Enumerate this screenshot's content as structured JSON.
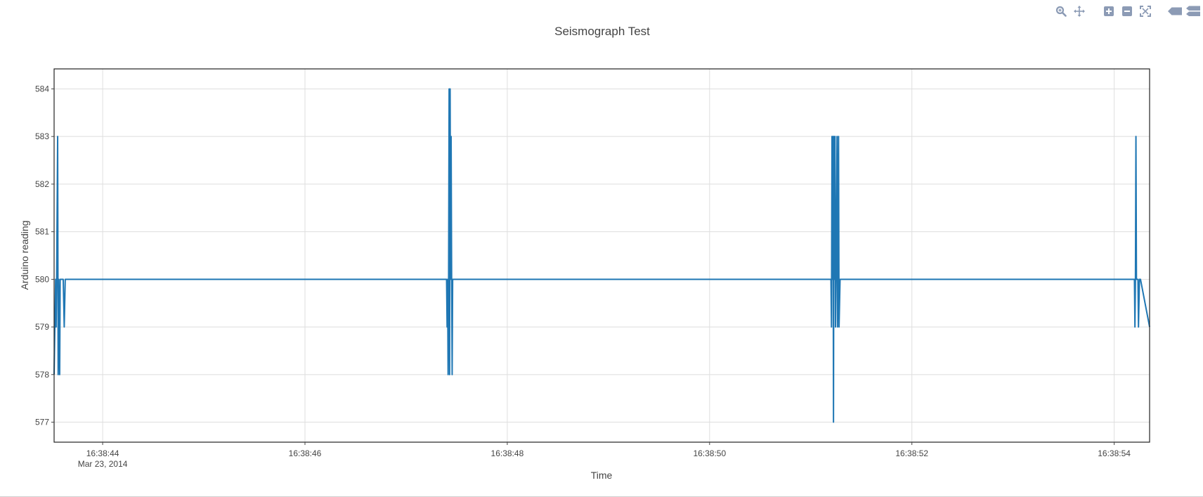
{
  "toolbar": {
    "buttons": [
      {
        "name": "zoom",
        "icon": "zoom-icon"
      },
      {
        "name": "pan",
        "icon": "pan-icon"
      },
      {
        "name": "zoom-in",
        "icon": "zoom-in-icon"
      },
      {
        "name": "zoom-out",
        "icon": "zoom-out-icon"
      },
      {
        "name": "autoscale",
        "icon": "autoscale-icon"
      },
      {
        "name": "hover-closest",
        "icon": "hover-closest-icon"
      },
      {
        "name": "hover-compare",
        "icon": "hover-compare-icon"
      }
    ],
    "icon_color": "#8c9bb5"
  },
  "chart_data": {
    "type": "line",
    "title": "Seismograph Test",
    "xlabel": "Time",
    "ylabel": "Arduino reading",
    "x_unit": "seconds past 16:38:00, Mar 23, 2014",
    "xlim": [
      43.52,
      54.35
    ],
    "ylim": [
      576.58,
      584.42
    ],
    "x_ticks": [
      {
        "value": 44,
        "label": "16:38:44",
        "sublabel": "Mar 23, 2014"
      },
      {
        "value": 46,
        "label": "16:38:46",
        "sublabel": ""
      },
      {
        "value": 48,
        "label": "16:38:48",
        "sublabel": ""
      },
      {
        "value": 50,
        "label": "16:38:50",
        "sublabel": ""
      },
      {
        "value": 52,
        "label": "16:38:52",
        "sublabel": ""
      },
      {
        "value": 54,
        "label": "16:38:54",
        "sublabel": ""
      }
    ],
    "y_ticks": [
      577,
      578,
      579,
      580,
      581,
      582,
      583,
      584
    ],
    "grid": true,
    "line_color": "#1f77b4",
    "series": [
      {
        "name": "",
        "x": [
          43.52,
          43.535,
          43.54,
          43.545,
          43.555,
          43.56,
          43.565,
          43.575,
          43.58,
          43.59,
          43.61,
          43.62,
          43.63,
          43.64,
          47.4,
          47.405,
          47.41,
          47.415,
          47.42,
          47.425,
          47.43,
          47.435,
          47.44,
          47.445,
          47.45,
          47.455,
          47.46,
          47.465,
          47.47,
          47.48,
          51.2,
          51.205,
          51.21,
          51.215,
          51.22,
          51.225,
          51.23,
          51.235,
          51.24,
          51.245,
          51.25,
          51.26,
          51.265,
          51.27,
          51.275,
          51.28,
          51.29,
          51.3,
          51.31,
          54.2,
          54.205,
          54.21,
          54.215,
          54.22,
          54.23,
          54.235,
          54.24,
          54.25,
          54.26,
          54.35
        ],
        "y": [
          578,
          580,
          579,
          580,
          583,
          578,
          580,
          578,
          580,
          580,
          580,
          579,
          580,
          580,
          580,
          579,
          580,
          578,
          580,
          584,
          578,
          584,
          580,
          583,
          580,
          578,
          580,
          580,
          580,
          580,
          580,
          579,
          583,
          580,
          583,
          577,
          583,
          580,
          583,
          579,
          580,
          583,
          579,
          580,
          583,
          579,
          580,
          580,
          580,
          580,
          579,
          580,
          583,
          580,
          580,
          580,
          579,
          580,
          580,
          579
        ]
      }
    ]
  }
}
